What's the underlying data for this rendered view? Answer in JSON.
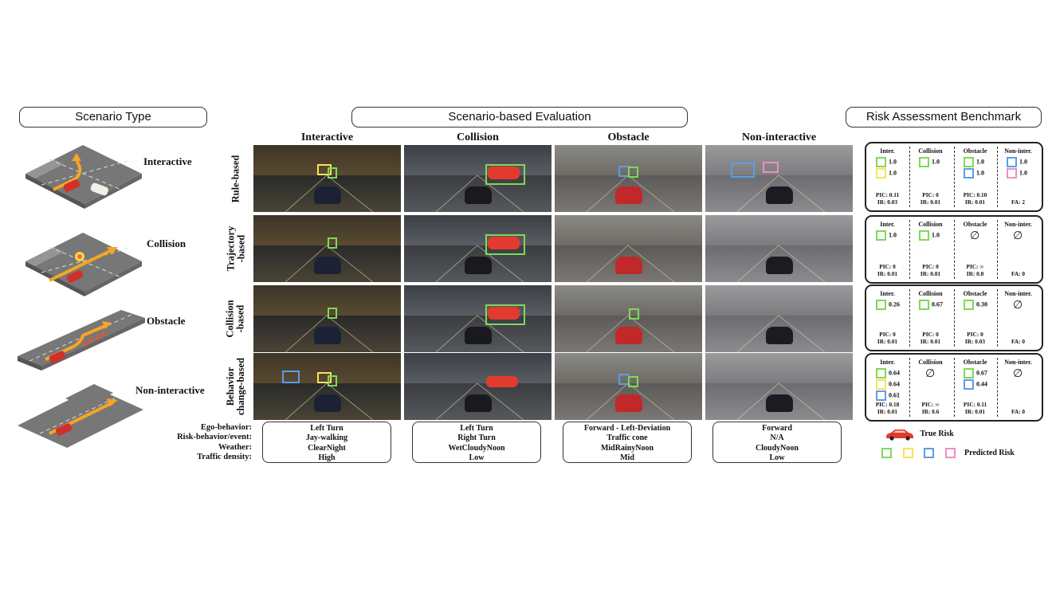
{
  "headers": {
    "scenario_type": "Scenario Type",
    "evaluation": "Scenario-based Evaluation",
    "benchmark": "Risk Assessment Benchmark"
  },
  "scenario_types": [
    "Interactive",
    "Collision",
    "Obstacle",
    "Non-interactive"
  ],
  "columns": [
    "Interactive",
    "Collision",
    "Obstacle",
    "Non-interactive"
  ],
  "rows": [
    "Rule-based",
    "Trajectory\n-based",
    "Collision\n-based",
    "Behavior\nchange-based"
  ],
  "legend_keys": [
    "Ego-behavior:",
    "Risk-behavior/event:",
    "Weather:",
    "Traffic density:"
  ],
  "scenario_info": [
    [
      "Left Turn",
      "Jay-walking",
      "ClearNight",
      "High"
    ],
    [
      "Left Turn",
      "Right Turn",
      "WetCloudyNoon",
      "Low"
    ],
    [
      "Forward - Left-Deviation",
      "Traffic cone",
      "MidRainyNoon",
      "Mid"
    ],
    [
      "Forward",
      "N/A",
      "CloudyNoon",
      "Low"
    ]
  ],
  "colors": {
    "green": "#7ed957",
    "yellow": "#f7e35c",
    "blue": "#5a9ee6",
    "pink": "#ef8fc0",
    "true_risk": "#e23b2e"
  },
  "benchmark": {
    "columns": [
      "Inter.",
      "Collision",
      "Obstacle",
      "Non-inter."
    ],
    "rows": [
      {
        "inter": {
          "items": [
            [
              "green",
              "1.0"
            ],
            [
              "yellow",
              "1.0"
            ]
          ],
          "metrics": [
            "PIC: 0.11",
            "IR: 0.03"
          ]
        },
        "collision": {
          "items": [
            [
              "green",
              "1.0"
            ]
          ],
          "metrics": [
            "PIC: 0",
            "IR: 0.01"
          ]
        },
        "obstacle": {
          "items": [
            [
              "green",
              "1.0"
            ],
            [
              "blue",
              "1.0"
            ]
          ],
          "metrics": [
            "PIC: 0.10",
            "IR: 0.01"
          ]
        },
        "noninter": {
          "items": [
            [
              "blue",
              "1.0"
            ],
            [
              "pink",
              "1.0"
            ]
          ],
          "metrics": [
            "FA: 2"
          ]
        }
      },
      {
        "inter": {
          "items": [
            [
              "green",
              "1.0"
            ]
          ],
          "metrics": [
            "PIC: 0",
            "IR: 0.01"
          ]
        },
        "collision": {
          "items": [
            [
              "green",
              "1.0"
            ]
          ],
          "metrics": [
            "PIC: 0",
            "IR: 0.01"
          ]
        },
        "obstacle": {
          "empty": "∅",
          "metrics": [
            "PIC: ∞",
            "IR: 0.8"
          ]
        },
        "noninter": {
          "empty": "∅",
          "metrics": [
            "FA: 0"
          ]
        }
      },
      {
        "inter": {
          "items": [
            [
              "green",
              "0.26"
            ]
          ],
          "metrics": [
            "PIC: 0",
            "IR: 0.01"
          ]
        },
        "collision": {
          "items": [
            [
              "green",
              "0.67"
            ]
          ],
          "metrics": [
            "PIC: 0",
            "IR: 0.01"
          ]
        },
        "obstacle": {
          "items": [
            [
              "green",
              "0.30"
            ]
          ],
          "metrics": [
            "PIC: 0",
            "IR: 0.03"
          ]
        },
        "noninter": {
          "empty": "∅",
          "metrics": [
            "FA: 0"
          ]
        }
      },
      {
        "inter": {
          "items": [
            [
              "green",
              "0.64"
            ],
            [
              "yellow",
              "0.64"
            ],
            [
              "blue",
              "0.61"
            ]
          ],
          "metrics": [
            "PIC: 0.18",
            "IR: 0.01"
          ]
        },
        "collision": {
          "empty": "∅",
          "metrics": [
            "PIC: ∞",
            "IR: 0.6"
          ]
        },
        "obstacle": {
          "items": [
            [
              "green",
              "0.67"
            ],
            [
              "blue",
              "0.44"
            ]
          ],
          "metrics": [
            "PIC: 0.11",
            "IR: 0.01"
          ]
        },
        "noninter": {
          "empty": "∅",
          "metrics": [
            "FA: 0"
          ]
        }
      }
    ],
    "legend": {
      "true_risk": "True Risk",
      "predicted_risk": "Predicted Risk"
    }
  }
}
